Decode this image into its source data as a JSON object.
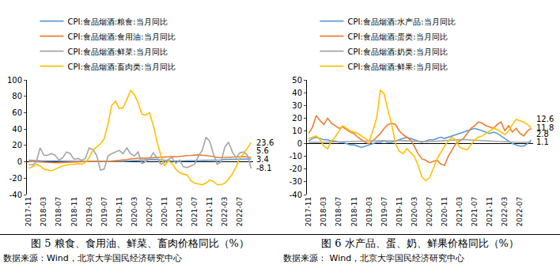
{
  "chart_data": [
    {
      "type": "line",
      "title": "图 5 粮食、食用油、鲜菜、畜肉价格同比（%）",
      "source": "数据来源：Wind，北京大学国民经济研究中心",
      "categories": [
        "2017-11",
        null,
        null,
        null,
        "2018-03",
        null,
        null,
        null,
        "2018-07",
        null,
        null,
        null,
        "2018-11",
        null,
        null,
        null,
        "2019-03",
        null,
        null,
        null,
        "2019-07",
        null,
        null,
        null,
        "2019-11",
        null,
        null,
        null,
        "2020-03",
        null,
        null,
        null,
        "2020-07",
        null,
        null,
        null,
        "2020-11",
        null,
        null,
        null,
        "2021-03",
        null,
        null,
        null,
        "2021-07",
        null,
        null,
        null,
        "2021-11",
        null,
        null,
        null,
        "2022-03",
        null,
        null,
        null,
        "2022-07",
        null,
        null,
        null
      ],
      "series": [
        {
          "name": "CPI:食品烟酒:粮食:当月同比",
          "color": "#5B9BD5",
          "values": [
            2.0,
            1.5,
            1.5,
            1.3,
            1.2,
            1.0,
            0.9,
            1.0,
            0.9,
            0.8,
            0.8,
            0.7,
            0.6,
            0.5,
            0.6,
            0.6,
            0.7,
            0.6,
            0.6,
            0.6,
            0.5,
            0.5,
            0.5,
            0.6,
            0.6,
            0.6,
            0.9,
            1.2,
            1.6,
            1.9,
            2.2,
            2.5,
            2.7,
            2.8,
            2.6,
            2.4,
            1.8,
            1.5,
            0.8,
            0.9,
            0.9,
            1.0,
            1.0,
            1.1,
            1.2,
            1.4,
            1.4,
            1.5,
            1.6,
            1.7,
            1.8,
            2.3,
            2.8,
            2.9,
            2.6,
            2.8,
            2.9,
            3.1,
            3.2,
            3.4
          ]
        },
        {
          "name": "CPI:食品烟酒:食用油:当月同比",
          "color": "#ED7D31",
          "values": [
            0.5,
            0.2,
            0.0,
            -0.3,
            -0.7,
            -0.8,
            -1.0,
            -1.1,
            -1.0,
            -0.9,
            -0.7,
            -0.6,
            -0.5,
            -0.3,
            -0.3,
            0.3,
            0.5,
            0.8,
            0.9,
            1.0,
            0.6,
            0.4,
            0.8,
            1.1,
            1.4,
            2.2,
            2.6,
            3.4,
            4.1,
            4.4,
            4.6,
            4.3,
            4.8,
            5.1,
            5.2,
            5.1,
            5.6,
            5.9,
            6.4,
            6.1,
            6.8,
            7.4,
            7.6,
            7.8,
            8.1,
            8.6,
            8.1,
            7.2,
            7.0,
            6.4,
            5.3,
            5.1,
            5.4,
            5.3,
            5.6,
            5.9,
            6.4,
            6.3,
            5.8,
            5.6
          ]
        },
        {
          "name": "CPI:食品烟酒:鲜菜:当月同比",
          "color": "#A5A5A5",
          "values": [
            -3,
            -4,
            0,
            17,
            8,
            8,
            10,
            8,
            2,
            5,
            12,
            10,
            3,
            4,
            2,
            4,
            17,
            15,
            8,
            -10,
            -9,
            7,
            10,
            12,
            14,
            10,
            17,
            10,
            7,
            12,
            -2,
            0,
            3,
            11,
            5,
            -3,
            -1,
            3,
            5,
            -2,
            2,
            -6,
            -7,
            -5,
            -3,
            7,
            14,
            30,
            25,
            9,
            -3,
            0,
            18,
            24,
            12,
            5,
            11,
            12,
            8,
            -8.1
          ]
        },
        {
          "name": "CPI:食品烟酒:畜肉类:当月同比",
          "color": "#FFC000",
          "values": [
            -8,
            -6,
            -3,
            -5,
            -9,
            -10,
            -11,
            -9,
            -7,
            -5,
            -4,
            -3,
            -3,
            -2,
            -3,
            -1,
            5,
            14,
            18,
            22,
            28,
            46,
            69,
            74,
            65,
            66,
            76,
            87,
            82,
            72,
            58,
            57,
            60,
            45,
            25,
            8,
            -5,
            1,
            -2,
            -9,
            -13,
            -15,
            -16,
            -23,
            -26,
            -27,
            -28,
            -26,
            -22,
            -24,
            -28,
            -28,
            -26,
            -21,
            -15,
            -6,
            5,
            10,
            17,
            23.6
          ]
        }
      ],
      "annotations": [
        {
          "text": "3.4",
          "series": "CPI:食品烟酒:粮食:当月同比"
        },
        {
          "text": "5.6",
          "series": "CPI:食品烟酒:食用油:当月同比"
        },
        {
          "text": "-8.1",
          "series": "CPI:食品烟酒:鲜菜:当月同比"
        },
        {
          "text": "23.6",
          "series": "CPI:食品烟酒:畜肉类:当月同比"
        }
      ],
      "ylim": [
        -40,
        100
      ],
      "yticks": [
        -40,
        -20,
        0,
        20,
        40,
        60,
        80,
        100
      ],
      "grid": false,
      "legend": "top"
    },
    {
      "type": "line",
      "title": "图 6 水产品、蛋、奶、鲜果价格同比（%）",
      "source": "数据来源： Wind，北京大学国民经济研究中心",
      "categories": [
        "2017-11",
        null,
        null,
        null,
        "2018-03",
        null,
        null,
        null,
        "2018-07",
        null,
        null,
        null,
        "2018-11",
        null,
        null,
        null,
        "2019-03",
        null,
        null,
        null,
        "2019-07",
        null,
        null,
        null,
        "2019-11",
        null,
        null,
        null,
        "2020-03",
        null,
        null,
        null,
        "2020-07",
        null,
        null,
        null,
        "2020-11",
        null,
        null,
        null,
        "2021-03",
        null,
        null,
        null,
        "2021-07",
        null,
        null,
        null,
        "2021-11",
        null,
        null,
        null,
        "2022-03",
        null,
        null,
        null,
        "2022-07",
        null,
        null,
        null
      ],
      "series": [
        {
          "name": "CPI:食品烟酒:水产品:当月同比",
          "color": "#5B9BD5",
          "values": [
            2,
            4,
            5,
            4,
            3,
            3,
            2,
            2,
            1,
            1,
            0,
            -1,
            -1,
            -2,
            -3,
            -2,
            -1,
            0,
            1,
            1,
            2,
            1,
            1,
            2,
            3,
            4,
            5,
            4,
            3,
            2,
            1,
            2,
            3,
            3,
            4,
            5,
            4,
            5,
            6,
            7,
            8,
            9,
            10,
            11,
            12,
            11,
            10,
            9,
            8,
            9,
            8,
            6,
            4,
            2,
            0,
            -1,
            -2,
            -2,
            0,
            2.8
          ]
        },
        {
          "name": "CPI:食品烟酒:蛋类:当月同比",
          "color": "#ED7D31",
          "values": [
            8,
            13,
            22,
            18,
            15,
            20,
            16,
            14,
            12,
            13,
            11,
            9,
            8,
            5,
            3,
            1,
            0,
            2,
            5,
            8,
            12,
            15,
            16,
            15,
            10,
            7,
            5,
            3,
            -2,
            -8,
            -12,
            -13,
            -15,
            -14,
            -13,
            -16,
            -17,
            -10,
            -5,
            0,
            2,
            4,
            8,
            12,
            14,
            17,
            16,
            14,
            13,
            12,
            15,
            17,
            10,
            14,
            9,
            12,
            8,
            6,
            10,
            11.8
          ]
        },
        {
          "name": "CPI:食品烟酒:奶类:当月同比",
          "color": "#A5A5A5",
          "values": [
            1,
            1.2,
            1.1,
            1,
            1.1,
            1.2,
            1.3,
            1.5,
            1.6,
            1.5,
            1.7,
            1.8,
            1.9,
            2.0,
            2.2,
            2.1,
            2.2,
            2.3,
            2.4,
            2.4,
            2.3,
            2.2,
            2.1,
            2.0,
            2.2,
            2.3,
            2.1,
            2.0,
            1.8,
            1.6,
            1.6,
            1.5,
            1.6,
            1.8,
            2.0,
            2.2,
            2.5,
            2.6,
            2.9,
            3.1,
            3.3,
            3.2,
            3.0,
            2.9,
            2.8,
            2.7,
            2.5,
            2.3,
            2.1,
            1.9,
            1.7,
            1.5,
            1.4,
            1.3,
            1.2,
            1.1,
            1.0,
            1.2,
            1.1,
            1.1
          ]
        },
        {
          "name": "CPI:食品烟酒:鲜果:当月同比",
          "color": "#FFC000",
          "values": [
            4,
            5,
            6,
            3,
            -2,
            -4,
            2,
            5,
            10,
            14,
            12,
            10,
            9,
            8,
            6,
            4,
            2,
            10,
            20,
            42,
            39,
            26,
            15,
            0,
            -6,
            -8,
            -4,
            -7,
            -10,
            -17,
            -26,
            -29,
            -27,
            -20,
            -12,
            -7,
            -2,
            2,
            5,
            3,
            -3,
            -4,
            -5,
            -1,
            3,
            5,
            6,
            8,
            10,
            12,
            11,
            9,
            7,
            10,
            15,
            19,
            18,
            17,
            15,
            12.6
          ]
        }
      ],
      "annotations": [
        {
          "text": "2.8",
          "series": "CPI:食品烟酒:水产品:当月同比"
        },
        {
          "text": "11.8",
          "series": "CPI:食品烟酒:蛋类:当月同比"
        },
        {
          "text": "1.1",
          "series": "CPI:食品烟酒:奶类:当月同比"
        },
        {
          "text": "12.6",
          "series": "CPI:食品烟酒:鲜果:当月同比"
        }
      ],
      "ylim": [
        -40,
        50
      ],
      "yticks": [
        -40,
        -30,
        -20,
        -10,
        0,
        10,
        20,
        30,
        40,
        50
      ],
      "grid": false,
      "legend": "top"
    }
  ]
}
